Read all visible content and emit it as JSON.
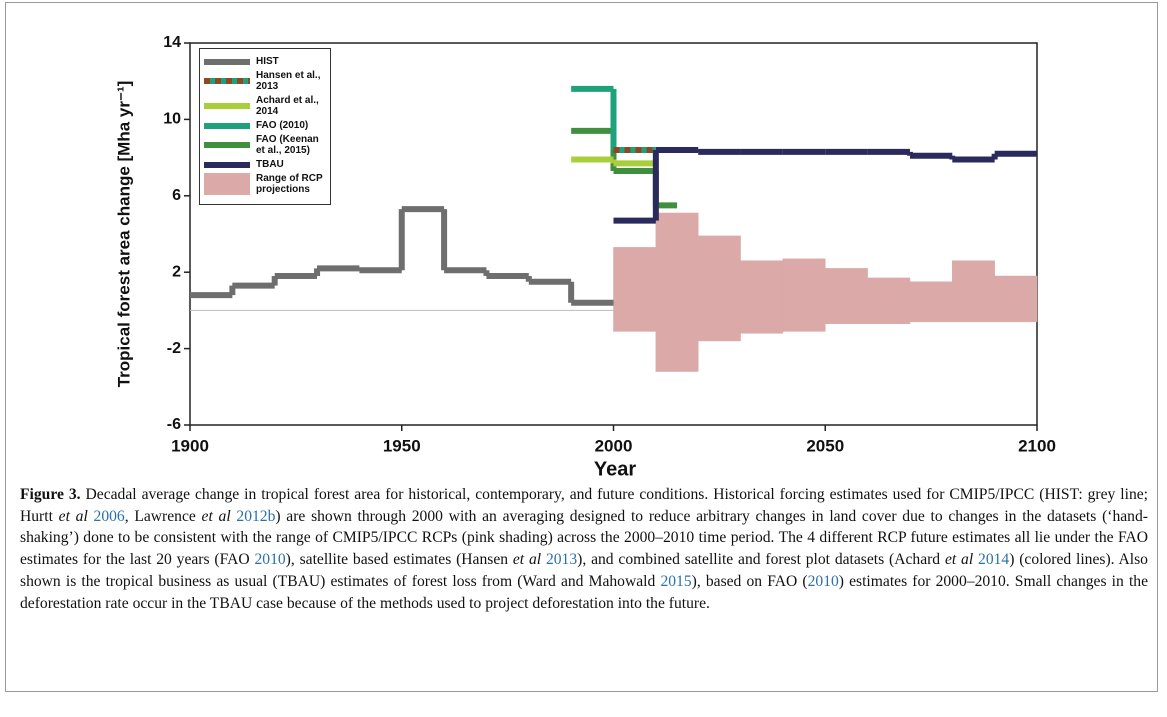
{
  "chart_data": {
    "type": "step",
    "x_label": "Year",
    "y_label": "Tropical forest area change [Mha yr⁻¹]",
    "xlim": [
      1900,
      2100
    ],
    "xticks": [
      1900,
      1950,
      2000,
      2050,
      2100
    ],
    "ylim": [
      -6,
      14
    ],
    "yticks": [
      -6,
      -2,
      2,
      6,
      10,
      14
    ],
    "zero_line": true,
    "series": [
      {
        "name": "HIST",
        "color": "#6e6e6e",
        "bins": [
          1900,
          1910,
          1920,
          1930,
          1940,
          1950,
          1960,
          1970,
          1980,
          1990,
          2000
        ],
        "values": [
          0.8,
          1.3,
          1.8,
          2.2,
          2.1,
          5.3,
          2.1,
          1.8,
          1.5,
          0.4
        ]
      },
      {
        "name": "Hansen et al., 2013",
        "color": "#8b4a23",
        "dash": true,
        "bins": [
          2000,
          2012
        ],
        "values": [
          8.4
        ]
      },
      {
        "name": "Achard et al., 2014",
        "color": "#a8cf3a",
        "bins": [
          1990,
          2000,
          2010
        ],
        "values": [
          7.9,
          7.7
        ]
      },
      {
        "name": "FAO (2010)",
        "color": "#1ea27c",
        "bins": [
          1990,
          2000,
          2010
        ],
        "values": [
          11.6,
          8.4
        ]
      },
      {
        "name": "FAO (Keenan et al., 2015)",
        "color": "#3f8f3f",
        "bins": [
          1990,
          2000,
          2010,
          2015
        ],
        "values": [
          9.4,
          7.3,
          5.5
        ]
      },
      {
        "name": "TBAU",
        "color": "#2b2a5c",
        "bins": [
          2000,
          2010,
          2020,
          2030,
          2040,
          2050,
          2060,
          2070,
          2080,
          2090,
          2100
        ],
        "values": [
          4.7,
          8.4,
          8.3,
          8.3,
          8.3,
          8.3,
          8.3,
          8.1,
          7.9,
          8.2
        ]
      },
      {
        "name": "Range of RCP projections",
        "color": "#dba9a8",
        "kind": "range",
        "bins": [
          2000,
          2010,
          2020,
          2030,
          2040,
          2050,
          2060,
          2070,
          2080,
          2090,
          2100
        ],
        "low": [
          -1.1,
          -3.2,
          -1.6,
          -1.2,
          -1.1,
          -0.7,
          -0.7,
          -0.6,
          -0.6,
          -0.6
        ],
        "high": [
          3.3,
          5.1,
          3.9,
          2.6,
          2.7,
          2.2,
          1.7,
          1.5,
          2.6,
          1.8
        ]
      }
    ]
  },
  "caption": {
    "segments": [
      {
        "text": "Figure 3.",
        "style": "bold"
      },
      {
        "text": " Decadal average change in tropical forest area for historical, contemporary, and future conditions. Historical forcing estimates used for CMIP5/IPCC (HIST: grey line; Hurtt ",
        "style": "plain"
      },
      {
        "text": "et al",
        "style": "italic"
      },
      {
        "text": " ",
        "style": "plain"
      },
      {
        "text": "2006",
        "style": "link"
      },
      {
        "text": ", Lawrence ",
        "style": "plain"
      },
      {
        "text": "et al",
        "style": "italic"
      },
      {
        "text": " ",
        "style": "plain"
      },
      {
        "text": "2012b",
        "style": "link"
      },
      {
        "text": ") are shown through 2000 with an averaging designed to reduce arbitrary changes in land cover due to changes in the datasets (‘hand-shaking’) done to be consistent with the range of CMIP5/IPCC RCPs (pink shading) across the 2000–2010 time period. The 4 different RCP future estimates all lie under the FAO estimates for the last 20 years (FAO ",
        "style": "plain"
      },
      {
        "text": "2010",
        "style": "link"
      },
      {
        "text": "), satellite based estimates (Hansen ",
        "style": "plain"
      },
      {
        "text": "et al",
        "style": "italic"
      },
      {
        "text": " ",
        "style": "plain"
      },
      {
        "text": "2013",
        "style": "link"
      },
      {
        "text": "), and combined satellite and forest plot datasets (Achard ",
        "style": "plain"
      },
      {
        "text": "et al",
        "style": "italic"
      },
      {
        "text": " ",
        "style": "plain"
      },
      {
        "text": "2014",
        "style": "link"
      },
      {
        "text": ") (colored lines). Also shown is the tropical business as usual (TBAU) estimates of forest loss from (Ward and Mahowald ",
        "style": "plain"
      },
      {
        "text": "2015",
        "style": "link"
      },
      {
        "text": "), based on FAO (",
        "style": "plain"
      },
      {
        "text": "2010",
        "style": "link"
      },
      {
        "text": ") estimates for 2000–2010. Small changes in the deforestation rate occur in the TBAU case because of the methods used to project deforestation into the future.",
        "style": "plain"
      }
    ]
  }
}
